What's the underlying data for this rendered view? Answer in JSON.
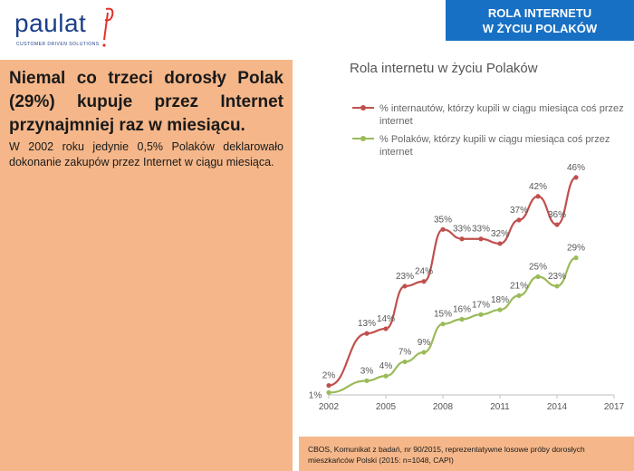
{
  "brand": {
    "name": "paulat",
    "tagline": "CUSTOMER DRIVEN SOLUTIONS"
  },
  "section": {
    "line1": "ROLA INTERNETU",
    "line2": "W ŻYCIU POLAKÓW"
  },
  "headline": "Niemal co trzeci dorosły Polak (29%) kupuje przez Internet przynajmniej raz w miesiącu.",
  "subtext": "W 2002 roku jedynie 0,5% Polaków deklarowało dokonanie zakupów przez Internet w ciągu miesiąca.",
  "source": {
    "line1": "CBOS, Komunikat z badań, nr 90/2015, reprezentatywne losowe próby dorosłych",
    "line2": "mieszkańców Polski  (2015: n=1048, CAPI)"
  },
  "colors": {
    "internet_users": "#c0504d",
    "all_poles": "#9bbb59",
    "banner": "#1770c4",
    "panel": "#f5b78a"
  },
  "chart_data": {
    "type": "line",
    "title": "Rola internetu w życiu Polaków",
    "xlim": [
      2002,
      2017
    ],
    "ylim": [
      0,
      50
    ],
    "xticks": [
      "2002",
      "2005",
      "2008",
      "2011",
      "2014",
      "2017"
    ],
    "grid": false,
    "series": [
      {
        "name_line1": "% internautów, którzy kupili w ciągu miesiąca coś przez",
        "name_line2": "internet",
        "color": "#c0504d",
        "points": [
          {
            "x": 2002,
            "y": 2,
            "label": "2%"
          },
          {
            "x": 2004,
            "y": 13,
            "label": "13%"
          },
          {
            "x": 2005,
            "y": 14,
            "label": "14%"
          },
          {
            "x": 2006,
            "y": 23,
            "label": "23%"
          },
          {
            "x": 2007,
            "y": 24,
            "label": "24%"
          },
          {
            "x": 2008,
            "y": 35,
            "label": "35%"
          },
          {
            "x": 2009,
            "y": 33,
            "label": "33%"
          },
          {
            "x": 2010,
            "y": 33,
            "label": "33%"
          },
          {
            "x": 2011,
            "y": 32,
            "label": "32%"
          },
          {
            "x": 2012,
            "y": 37,
            "label": "37%"
          },
          {
            "x": 2013,
            "y": 42,
            "label": "42%"
          },
          {
            "x": 2014,
            "y": 36,
            "label": "36%"
          },
          {
            "x": 2015,
            "y": 46,
            "label": "46%"
          }
        ]
      },
      {
        "name_line1": "% Polaków, którzy kupili w ciągu miesiąca coś przez",
        "name_line2": "internet",
        "color": "#9bbb59",
        "points": [
          {
            "x": 2002,
            "y": 0.5,
            "label": "1%"
          },
          {
            "x": 2004,
            "y": 3,
            "label": "3%"
          },
          {
            "x": 2005,
            "y": 4,
            "label": "4%"
          },
          {
            "x": 2006,
            "y": 7,
            "label": "7%"
          },
          {
            "x": 2007,
            "y": 9,
            "label": "9%"
          },
          {
            "x": 2008,
            "y": 15,
            "label": "15%"
          },
          {
            "x": 2009,
            "y": 16,
            "label": "16%"
          },
          {
            "x": 2010,
            "y": 17,
            "label": "17%"
          },
          {
            "x": 2011,
            "y": 18,
            "label": "18%"
          },
          {
            "x": 2012,
            "y": 21,
            "label": "21%"
          },
          {
            "x": 2013,
            "y": 25,
            "label": "25%"
          },
          {
            "x": 2014,
            "y": 23,
            "label": "23%"
          },
          {
            "x": 2015,
            "y": 29,
            "label": "29%"
          }
        ]
      }
    ]
  }
}
